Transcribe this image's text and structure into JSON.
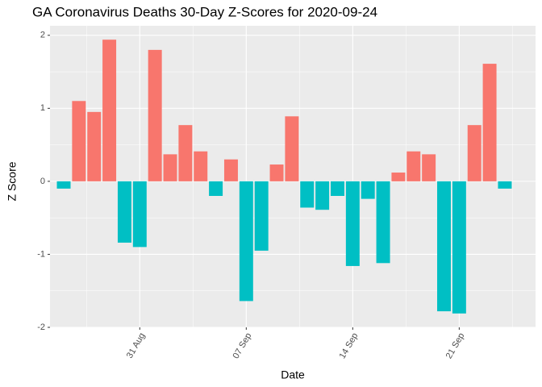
{
  "chart_data": {
    "type": "bar",
    "title": "GA Coronavirus Deaths 30-Day Z-Scores for 2020-09-24",
    "x_label": "Date",
    "y_label": "Z Score",
    "categories": [
      null,
      null,
      null,
      null,
      null,
      "31 Aug",
      null,
      null,
      null,
      null,
      null,
      null,
      "07 Sep",
      null,
      null,
      null,
      null,
      null,
      null,
      "14 Sep",
      null,
      null,
      null,
      null,
      null,
      null,
      "21 Sep",
      null,
      null,
      null
    ],
    "values": [
      -0.1,
      1.1,
      0.95,
      1.94,
      -0.84,
      -0.9,
      1.8,
      0.37,
      0.77,
      0.41,
      -0.2,
      0.3,
      -1.64,
      -0.95,
      0.23,
      0.89,
      -0.36,
      -0.39,
      -0.2,
      -1.16,
      -0.24,
      -1.12,
      0.12,
      0.41,
      0.37,
      -1.78,
      -1.81,
      0.77,
      1.61,
      -0.1
    ],
    "positive_color": "#F8766D",
    "negative_color": "#00BFC4",
    "ylim": [
      -2.0,
      2.13
    ],
    "yticks": [
      -2,
      -1,
      0,
      1,
      2
    ],
    "grid": true
  }
}
